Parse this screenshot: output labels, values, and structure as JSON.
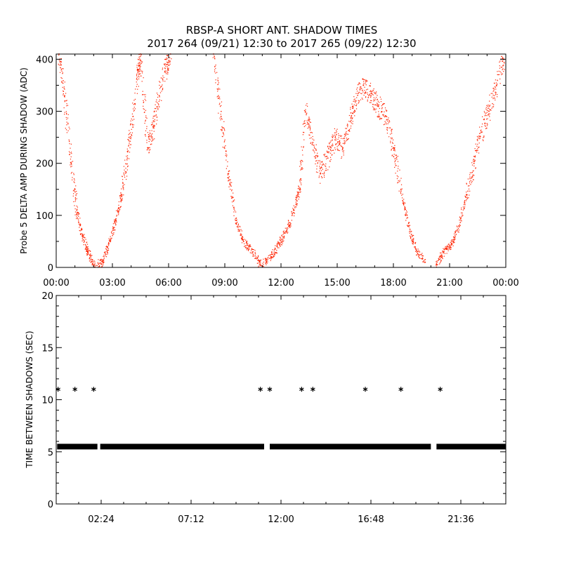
{
  "title_line1": "RBSP-A SHORT ANT. SHADOW TIMES",
  "title_line2": "2017 264 (09/21) 12:30 to 2017 265 (09/22) 12:30",
  "colors": {
    "scatter": "#ff2200",
    "stars": "#000000",
    "axes": "#000000"
  },
  "chart_data": [
    {
      "type": "scatter",
      "ylabel": "Probe 5 DELTA AMP DURING SHADOW (ADC)",
      "xlabel": "",
      "xlim": [
        0,
        24
      ],
      "ylim": [
        0,
        410
      ],
      "xticks": [
        "00:00",
        "03:00",
        "06:00",
        "09:00",
        "12:00",
        "15:00",
        "18:00",
        "21:00",
        "00:00"
      ],
      "yticks": [
        "0",
        "100",
        "200",
        "300",
        "400"
      ],
      "series": [
        {
          "points": [
            [
              0.15,
              410
            ],
            [
              0.45,
              330
            ],
            [
              0.8,
              200
            ],
            [
              1.1,
              110
            ],
            [
              1.4,
              60
            ],
            [
              1.7,
              30
            ],
            [
              2.0,
              5
            ],
            [
              2.5,
              10
            ],
            [
              2.8,
              45
            ],
            [
              3.2,
              90
            ],
            [
              3.5,
              140
            ],
            [
              3.8,
              210
            ],
            [
              4.1,
              290
            ],
            [
              4.4,
              380
            ],
            [
              4.5,
              410
            ],
            [
              4.9,
              230
            ],
            [
              5.2,
              270
            ],
            [
              5.5,
              330
            ],
            [
              5.9,
              390
            ],
            [
              6.1,
              410
            ],
            [
              8.4,
              410
            ],
            [
              8.8,
              290
            ],
            [
              9.2,
              180
            ],
            [
              9.6,
              90
            ],
            [
              10.0,
              50
            ],
            [
              10.5,
              30
            ],
            [
              10.9,
              5
            ],
            [
              11.5,
              20
            ],
            [
              11.9,
              45
            ],
            [
              12.3,
              70
            ],
            [
              12.7,
              110
            ],
            [
              13.0,
              150
            ],
            [
              13.3,
              300
            ],
            [
              13.7,
              240
            ],
            [
              14.1,
              180
            ],
            [
              14.5,
              210
            ],
            [
              14.9,
              250
            ],
            [
              15.3,
              230
            ],
            [
              15.7,
              280
            ],
            [
              16.0,
              320
            ],
            [
              16.4,
              350
            ],
            [
              16.8,
              330
            ],
            [
              17.2,
              310
            ],
            [
              17.6,
              290
            ],
            [
              18.0,
              230
            ],
            [
              18.4,
              150
            ],
            [
              18.8,
              80
            ],
            [
              19.2,
              35
            ],
            [
              19.7,
              10
            ],
            [
              20.3,
              5
            ],
            [
              20.7,
              30
            ],
            [
              21.1,
              45
            ],
            [
              21.5,
              80
            ],
            [
              21.9,
              140
            ],
            [
              22.3,
              200
            ],
            [
              22.7,
              260
            ],
            [
              23.1,
              300
            ],
            [
              23.5,
              350
            ],
            [
              23.9,
              400
            ]
          ]
        }
      ]
    },
    {
      "type": "scatter",
      "ylabel": "TIME BETWEEN SHADOWS (SEC)",
      "xlabel": "",
      "xlim": [
        0,
        24
      ],
      "ylim": [
        0,
        20
      ],
      "xticks": [
        {
          "label": "02:24",
          "x": 2.4
        },
        {
          "label": "07:12",
          "x": 7.2
        },
        {
          "label": "12:00",
          "x": 12.0
        },
        {
          "label": "16:48",
          "x": 16.8
        },
        {
          "label": "21:36",
          "x": 21.6
        }
      ],
      "yticks": [
        "0",
        "5",
        "10",
        "15",
        "20"
      ],
      "baseline": {
        "y": 5.5,
        "segments": [
          [
            0.05,
            2.2
          ],
          [
            2.35,
            11.1
          ],
          [
            11.4,
            20.0
          ],
          [
            20.3,
            24.0
          ]
        ]
      },
      "outliers": [
        [
          0.1,
          11
        ],
        [
          1.0,
          11
        ],
        [
          2.0,
          11
        ],
        [
          10.9,
          11
        ],
        [
          11.4,
          11
        ],
        [
          13.1,
          11
        ],
        [
          13.7,
          11
        ],
        [
          16.5,
          11
        ],
        [
          18.4,
          11
        ],
        [
          20.5,
          11
        ]
      ]
    }
  ]
}
